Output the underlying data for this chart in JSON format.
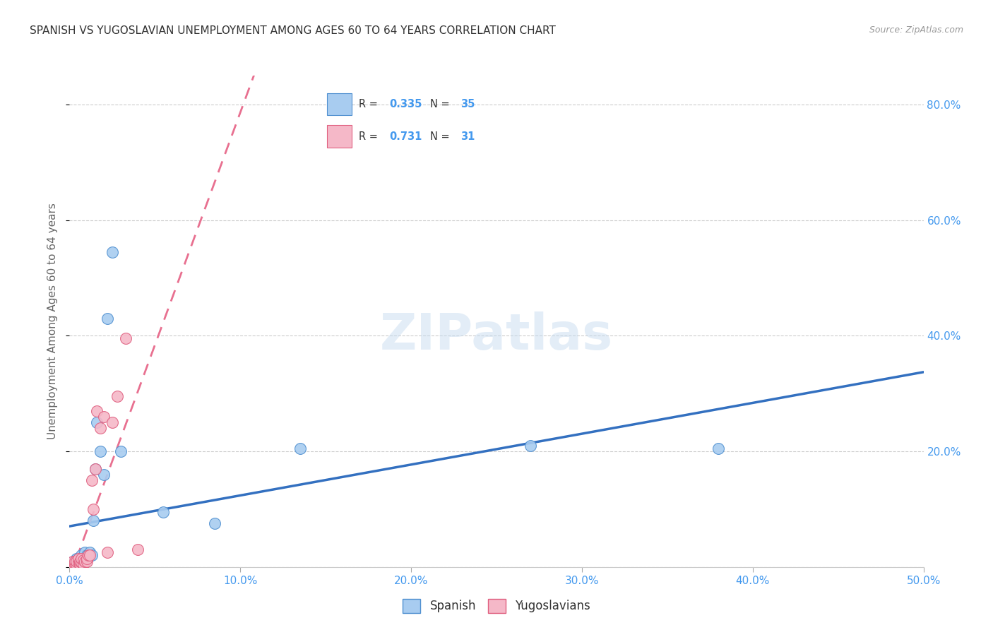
{
  "title": "SPANISH VS YUGOSLAVIAN UNEMPLOYMENT AMONG AGES 60 TO 64 YEARS CORRELATION CHART",
  "source": "Source: ZipAtlas.com",
  "ylabel": "Unemployment Among Ages 60 to 64 years",
  "xlim": [
    0.0,
    0.5
  ],
  "ylim": [
    0.0,
    0.85
  ],
  "xticks": [
    0.0,
    0.1,
    0.2,
    0.3,
    0.4,
    0.5
  ],
  "yticks": [
    0.0,
    0.2,
    0.4,
    0.6,
    0.8
  ],
  "right_yticks": [
    0.2,
    0.4,
    0.6,
    0.8
  ],
  "spanish_R": "0.335",
  "spanish_N": "35",
  "yugoslav_R": "0.731",
  "yugoslav_N": "31",
  "spanish_color": "#A8CCF0",
  "yugoslav_color": "#F5B8C8",
  "spanish_edge_color": "#5090D0",
  "yugoslav_edge_color": "#E06080",
  "spanish_line_color": "#3370C0",
  "yugoslav_line_color": "#E87090",
  "watermark_text": "ZIPatlas",
  "tick_label_color": "#4499EE",
  "spanish_x": [
    0.001,
    0.002,
    0.002,
    0.003,
    0.003,
    0.004,
    0.004,
    0.004,
    0.005,
    0.005,
    0.005,
    0.006,
    0.006,
    0.007,
    0.007,
    0.008,
    0.009,
    0.01,
    0.01,
    0.011,
    0.012,
    0.013,
    0.014,
    0.015,
    0.016,
    0.018,
    0.02,
    0.022,
    0.025,
    0.03,
    0.055,
    0.085,
    0.135,
    0.27,
    0.38
  ],
  "spanish_y": [
    0.005,
    0.005,
    0.01,
    0.005,
    0.01,
    0.008,
    0.012,
    0.015,
    0.005,
    0.01,
    0.015,
    0.008,
    0.015,
    0.01,
    0.02,
    0.015,
    0.025,
    0.015,
    0.02,
    0.02,
    0.025,
    0.02,
    0.08,
    0.17,
    0.25,
    0.2,
    0.16,
    0.43,
    0.545,
    0.2,
    0.095,
    0.075,
    0.205,
    0.21,
    0.205
  ],
  "yugoslav_x": [
    0.001,
    0.002,
    0.002,
    0.003,
    0.003,
    0.004,
    0.004,
    0.005,
    0.005,
    0.006,
    0.006,
    0.007,
    0.007,
    0.008,
    0.008,
    0.009,
    0.01,
    0.01,
    0.011,
    0.012,
    0.013,
    0.014,
    0.015,
    0.016,
    0.018,
    0.02,
    0.022,
    0.025,
    0.028,
    0.033,
    0.04
  ],
  "yugoslav_y": [
    0.005,
    0.005,
    0.01,
    0.005,
    0.01,
    0.005,
    0.01,
    0.008,
    0.015,
    0.005,
    0.01,
    0.008,
    0.015,
    0.005,
    0.012,
    0.01,
    0.01,
    0.015,
    0.02,
    0.02,
    0.15,
    0.1,
    0.17,
    0.27,
    0.24,
    0.26,
    0.025,
    0.25,
    0.295,
    0.395,
    0.03
  ]
}
